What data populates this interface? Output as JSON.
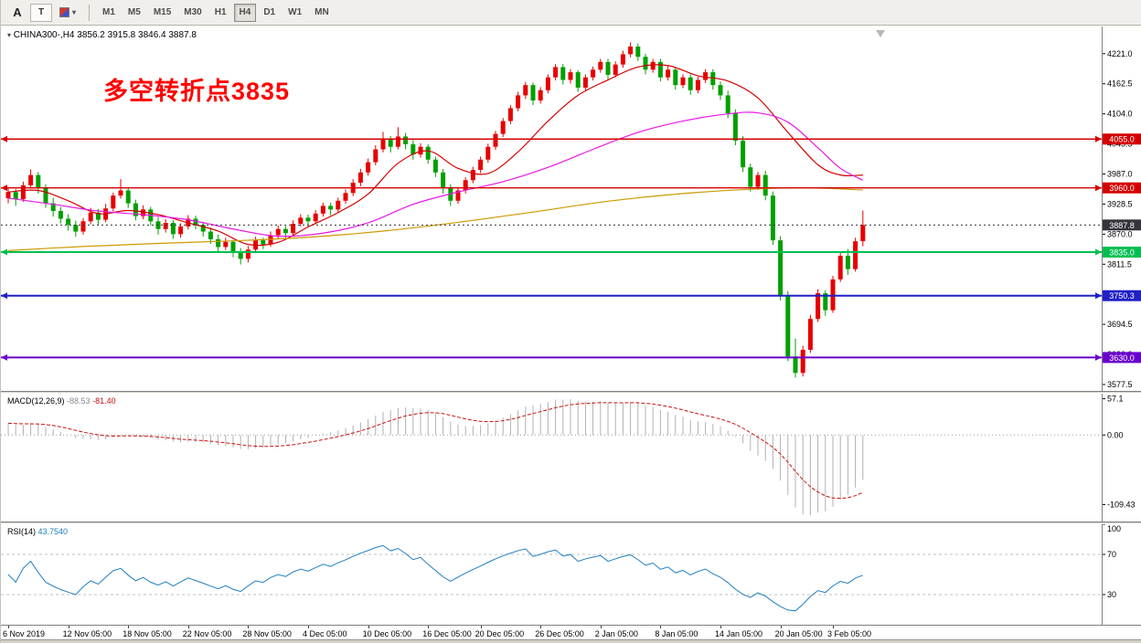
{
  "toolbar": {
    "tool_a": "A",
    "tool_t": "T",
    "timeframes": [
      "M1",
      "M5",
      "M15",
      "M30",
      "H1",
      "H4",
      "D1",
      "W1",
      "MN"
    ],
    "active": "H4"
  },
  "header": {
    "marker": "▾",
    "symbol": "CHINA300-,H4",
    "ohlc": "3856.2 3915.8 3846.4 3887.8"
  },
  "annotation": {
    "text": "多空转折点3835",
    "color": "#ff0000"
  },
  "chart_data": {
    "type": "candlestick",
    "symbol": "CHINA300-",
    "timeframe": "H4",
    "last_open": 3856.2,
    "last_high": 3915.8,
    "last_low": 3846.4,
    "last_close": 3887.8,
    "price_range": [
      3565,
      4274
    ],
    "y_ticks": [
      4221.0,
      4162.5,
      4104.0,
      4045.5,
      3987.0,
      3928.5,
      3870.0,
      3811.5,
      3753.0,
      3694.5,
      3636.0,
      3577.5
    ],
    "up_color": "#e60000",
    "down_color": "#00a000",
    "candles": [
      [
        3940,
        3962,
        3930,
        3952
      ],
      [
        3952,
        3958,
        3925,
        3938
      ],
      [
        3938,
        3972,
        3933,
        3965
      ],
      [
        3965,
        3996,
        3959,
        3985
      ],
      [
        3985,
        3991,
        3949,
        3960
      ],
      [
        3960,
        3967,
        3921,
        3930
      ],
      [
        3930,
        3941,
        3904,
        3915
      ],
      [
        3915,
        3923,
        3891,
        3900
      ],
      [
        3900,
        3909,
        3877,
        3888
      ],
      [
        3888,
        3896,
        3865,
        3875
      ],
      [
        3875,
        3901,
        3869,
        3895
      ],
      [
        3895,
        3921,
        3889,
        3912
      ],
      [
        3912,
        3919,
        3887,
        3898
      ],
      [
        3898,
        3929,
        3893,
        3920
      ],
      [
        3920,
        3951,
        3914,
        3945
      ],
      [
        3945,
        3977,
        3939,
        3955
      ],
      [
        3955,
        3961,
        3921,
        3930
      ],
      [
        3930,
        3937,
        3897,
        3905
      ],
      [
        3905,
        3926,
        3899,
        3918
      ],
      [
        3918,
        3923,
        3887,
        3895
      ],
      [
        3895,
        3903,
        3869,
        3880
      ],
      [
        3880,
        3899,
        3873,
        3892
      ],
      [
        3892,
        3897,
        3861,
        3870
      ],
      [
        3870,
        3891,
        3863,
        3885
      ],
      [
        3885,
        3907,
        3879,
        3900
      ],
      [
        3900,
        3906,
        3879,
        3888
      ],
      [
        3888,
        3894,
        3865,
        3875
      ],
      [
        3875,
        3883,
        3851,
        3860
      ],
      [
        3860,
        3869,
        3835,
        3845
      ],
      [
        3845,
        3863,
        3839,
        3855
      ],
      [
        3855,
        3859,
        3825,
        3835
      ],
      [
        3835,
        3843,
        3811,
        3822
      ],
      [
        3822,
        3847,
        3815,
        3840
      ],
      [
        3840,
        3865,
        3833,
        3858
      ],
      [
        3858,
        3863,
        3841,
        3850
      ],
      [
        3850,
        3875,
        3845,
        3868
      ],
      [
        3868,
        3887,
        3861,
        3880
      ],
      [
        3880,
        3886,
        3859,
        3872
      ],
      [
        3872,
        3897,
        3867,
        3890
      ],
      [
        3890,
        3909,
        3885,
        3902
      ],
      [
        3902,
        3908,
        3883,
        3895
      ],
      [
        3895,
        3917,
        3889,
        3910
      ],
      [
        3910,
        3931,
        3904,
        3925
      ],
      [
        3925,
        3931,
        3907,
        3918
      ],
      [
        3918,
        3941,
        3911,
        3935
      ],
      [
        3935,
        3957,
        3929,
        3950
      ],
      [
        3950,
        3977,
        3944,
        3970
      ],
      [
        3970,
        3997,
        3963,
        3990
      ],
      [
        3990,
        4017,
        3984,
        4010
      ],
      [
        4010,
        4043,
        4004,
        4035
      ],
      [
        4035,
        4069,
        4029,
        4055
      ],
      [
        4055,
        4061,
        4029,
        4040
      ],
      [
        4040,
        4078,
        4035,
        4060
      ],
      [
        4060,
        4067,
        4035,
        4045
      ],
      [
        4045,
        4053,
        4015,
        4025
      ],
      [
        4025,
        4047,
        4019,
        4040
      ],
      [
        4040,
        4045,
        4007,
        4015
      ],
      [
        4015,
        4021,
        3981,
        3990
      ],
      [
        3990,
        3997,
        3949,
        3960
      ],
      [
        3960,
        3967,
        3925,
        3935
      ],
      [
        3935,
        3961,
        3929,
        3955
      ],
      [
        3955,
        3981,
        3949,
        3975
      ],
      [
        3975,
        4001,
        3969,
        3995
      ],
      [
        3995,
        4021,
        3989,
        4015
      ],
      [
        4015,
        4046,
        4009,
        4040
      ],
      [
        4040,
        4071,
        4034,
        4065
      ],
      [
        4065,
        4096,
        4059,
        4090
      ],
      [
        4090,
        4121,
        4084,
        4115
      ],
      [
        4115,
        4147,
        4109,
        4140
      ],
      [
        4140,
        4166,
        4133,
        4160
      ],
      [
        4160,
        4165,
        4121,
        4130
      ],
      [
        4130,
        4156,
        4124,
        4150
      ],
      [
        4150,
        4181,
        4144,
        4175
      ],
      [
        4175,
        4201,
        4169,
        4195
      ],
      [
        4195,
        4201,
        4161,
        4170
      ],
      [
        4170,
        4191,
        4163,
        4185
      ],
      [
        4185,
        4189,
        4147,
        4155
      ],
      [
        4155,
        4181,
        4149,
        4175
      ],
      [
        4175,
        4196,
        4169,
        4190
      ],
      [
        4190,
        4211,
        4184,
        4205
      ],
      [
        4205,
        4211,
        4171,
        4180
      ],
      [
        4180,
        4206,
        4175,
        4200
      ],
      [
        4200,
        4227,
        4194,
        4220
      ],
      [
        4220,
        4243,
        4214,
        4235
      ],
      [
        4235,
        4241,
        4207,
        4215
      ],
      [
        4215,
        4221,
        4181,
        4190
      ],
      [
        4190,
        4211,
        4184,
        4205
      ],
      [
        4205,
        4211,
        4167,
        4175
      ],
      [
        4175,
        4197,
        4169,
        4190
      ],
      [
        4190,
        4195,
        4151,
        4160
      ],
      [
        4160,
        4181,
        4154,
        4175
      ],
      [
        4175,
        4181,
        4141,
        4150
      ],
      [
        4150,
        4176,
        4144,
        4170
      ],
      [
        4170,
        4191,
        4164,
        4185
      ],
      [
        4185,
        4191,
        4151,
        4160
      ],
      [
        4160,
        4167,
        4131,
        4140
      ],
      [
        4140,
        4149,
        4096,
        4105
      ],
      [
        4105,
        4113,
        4043,
        4052
      ],
      [
        4052,
        4061,
        3991,
        4000
      ],
      [
        4000,
        4007,
        3953,
        3962
      ],
      [
        3962,
        3991,
        3956,
        3985
      ],
      [
        3985,
        3993,
        3936,
        3945
      ],
      [
        3945,
        3953,
        3849,
        3858
      ],
      [
        3858,
        3866,
        3741,
        3750
      ],
      [
        3750,
        3759,
        3623,
        3632
      ],
      [
        3632,
        3667,
        3591,
        3600
      ],
      [
        3600,
        3653,
        3593,
        3645
      ],
      [
        3645,
        3713,
        3639,
        3705
      ],
      [
        3705,
        3763,
        3699,
        3755
      ],
      [
        3755,
        3761,
        3711,
        3722
      ],
      [
        3722,
        3789,
        3717,
        3782
      ],
      [
        3782,
        3836,
        3777,
        3828
      ],
      [
        3828,
        3841,
        3791,
        3802
      ],
      [
        3802,
        3863,
        3797,
        3856
      ],
      [
        3856.2,
        3915.8,
        3846.4,
        3887.8
      ]
    ],
    "x_labels": [
      {
        "i": 0,
        "label": "6 Nov 2019"
      },
      {
        "i": 8,
        "label": "12 Nov 05:00"
      },
      {
        "i": 16,
        "label": "18 Nov 05:00"
      },
      {
        "i": 24,
        "label": "22 Nov 05:00"
      },
      {
        "i": 32,
        "label": "28 Nov 05:00"
      },
      {
        "i": 40,
        "label": "4 Dec 05:00"
      },
      {
        "i": 48,
        "label": "10 Dec 05:00"
      },
      {
        "i": 56,
        "label": "16 Dec 05:00"
      },
      {
        "i": 63,
        "label": "20 Dec 05:00"
      },
      {
        "i": 71,
        "label": "26 Dec 05:00"
      },
      {
        "i": 79,
        "label": "2 Jan 05:00"
      },
      {
        "i": 87,
        "label": "8 Jan 05:00"
      },
      {
        "i": 95,
        "label": "14 Jan 05:00"
      },
      {
        "i": 103,
        "label": "20 Jan 05:00"
      },
      {
        "i": 110,
        "label": "3 Feb 05:00"
      }
    ],
    "hlines": [
      {
        "price": 4055.0,
        "label": "4055.0",
        "color": "#d40000",
        "width": 1.4
      },
      {
        "price": 3960.0,
        "label": "3960.0",
        "color": "#d40000",
        "width": 1.4
      },
      {
        "price": 3835.0,
        "label": "3835.0",
        "color": "#00bf50",
        "width": 2
      },
      {
        "price": 3750.3,
        "label": "3750.3",
        "color": "#2020c8",
        "width": 2
      },
      {
        "price": 3630.0,
        "label": "3630.0",
        "color": "#6a00cc",
        "width": 2
      }
    ],
    "current_price": {
      "value": 3887.8,
      "label": "3887.8",
      "color": "#34343c"
    },
    "ma_lines": [
      {
        "name": "fast",
        "color": "#d40000",
        "points": [
          [
            0,
            3952
          ],
          [
            4,
            3955
          ],
          [
            8,
            3935
          ],
          [
            12,
            3910
          ],
          [
            16,
            3916
          ],
          [
            20,
            3908
          ],
          [
            24,
            3892
          ],
          [
            28,
            3876
          ],
          [
            32,
            3850
          ],
          [
            36,
            3854
          ],
          [
            40,
            3884
          ],
          [
            44,
            3912
          ],
          [
            48,
            3948
          ],
          [
            52,
            4008
          ],
          [
            56,
            4032
          ],
          [
            60,
            3998
          ],
          [
            64,
            3988
          ],
          [
            68,
            4030
          ],
          [
            72,
            4090
          ],
          [
            76,
            4140
          ],
          [
            80,
            4170
          ],
          [
            84,
            4195
          ],
          [
            88,
            4198
          ],
          [
            92,
            4178
          ],
          [
            96,
            4168
          ],
          [
            100,
            4135
          ],
          [
            104,
            4068
          ],
          [
            108,
            4005
          ],
          [
            111,
            3985
          ],
          [
            114,
            3985
          ]
        ]
      },
      {
        "name": "medium",
        "color": "#e619e6",
        "points": [
          [
            0,
            3940
          ],
          [
            6,
            3928
          ],
          [
            12,
            3915
          ],
          [
            18,
            3908
          ],
          [
            24,
            3898
          ],
          [
            30,
            3880
          ],
          [
            36,
            3866
          ],
          [
            42,
            3872
          ],
          [
            48,
            3892
          ],
          [
            54,
            3928
          ],
          [
            60,
            3952
          ],
          [
            66,
            3972
          ],
          [
            72,
            4000
          ],
          [
            78,
            4035
          ],
          [
            84,
            4068
          ],
          [
            90,
            4090
          ],
          [
            96,
            4104
          ],
          [
            100,
            4106
          ],
          [
            104,
            4088
          ],
          [
            108,
            4038
          ],
          [
            111,
            3998
          ],
          [
            114,
            3975
          ]
        ]
      },
      {
        "name": "slow",
        "color": "#cc9a00",
        "points": [
          [
            0,
            3838
          ],
          [
            10,
            3846
          ],
          [
            20,
            3852
          ],
          [
            30,
            3857
          ],
          [
            40,
            3864
          ],
          [
            50,
            3876
          ],
          [
            60,
            3893
          ],
          [
            70,
            3913
          ],
          [
            80,
            3934
          ],
          [
            90,
            3949
          ],
          [
            100,
            3958
          ],
          [
            107,
            3960
          ],
          [
            114,
            3956
          ]
        ]
      }
    ]
  },
  "macd": {
    "label": "MACD(12,26,9)",
    "value_main": "-88.53",
    "value_signal": "-81.40",
    "fast": 12,
    "slow": 26,
    "signal": 9,
    "ticks": [
      {
        "v": 57.1,
        "label": "57.1"
      },
      {
        "v": 0,
        "label": "0.00"
      },
      {
        "v": -109.43,
        "label": "-109.43"
      }
    ],
    "histogram_color": "#b0b0b0",
    "signal_color": "#cc1111"
  },
  "rsi": {
    "label": "RSI(14)",
    "value": "43.7540",
    "period": 14,
    "range": [
      0,
      100
    ],
    "levels": [
      70,
      30
    ],
    "ticks": [
      100,
      70,
      30
    ],
    "line_color": "#1f7ec2"
  }
}
